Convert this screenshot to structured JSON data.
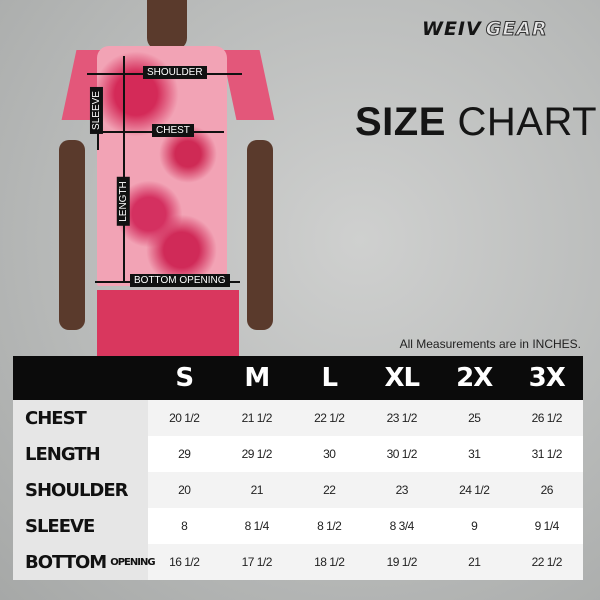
{
  "brand": {
    "part1": "WEIV",
    "part2": "GEAR"
  },
  "title": {
    "bold": "SIZE",
    "light": "CHART"
  },
  "note": "All Measurements are in INCHES.",
  "diagram_labels": {
    "shoulder": "SHOULDER",
    "sleeve": "SLEEVE",
    "chest": "CHEST",
    "length": "LENGTH",
    "bottom_opening": "BOTTOM OPENING"
  },
  "table": {
    "sizes": [
      "S",
      "M",
      "L",
      "XL",
      "2X",
      "3X"
    ],
    "rows": [
      {
        "label": "CHEST",
        "suffix": "",
        "values": [
          "20 1/2",
          "21 1/2",
          "22 1/2",
          "23 1/2",
          "25",
          "26 1/2"
        ]
      },
      {
        "label": "LENGTH",
        "suffix": "",
        "values": [
          "29",
          "29 1/2",
          "30",
          "30 1/2",
          "31",
          "31 1/2"
        ]
      },
      {
        "label": "SHOULDER",
        "suffix": "",
        "values": [
          "20",
          "21",
          "22",
          "23",
          "24 1/2",
          "26"
        ]
      },
      {
        "label": "SLEEVE",
        "suffix": "",
        "values": [
          "8",
          "8 1/4",
          "8 1/2",
          "8 3/4",
          "9",
          "9 1/4"
        ]
      },
      {
        "label": "BOTTOM",
        "suffix": "OPENING",
        "values": [
          "16 1/2",
          "17 1/2",
          "18 1/2",
          "19 1/2",
          "21",
          "22 1/2"
        ]
      }
    ]
  }
}
